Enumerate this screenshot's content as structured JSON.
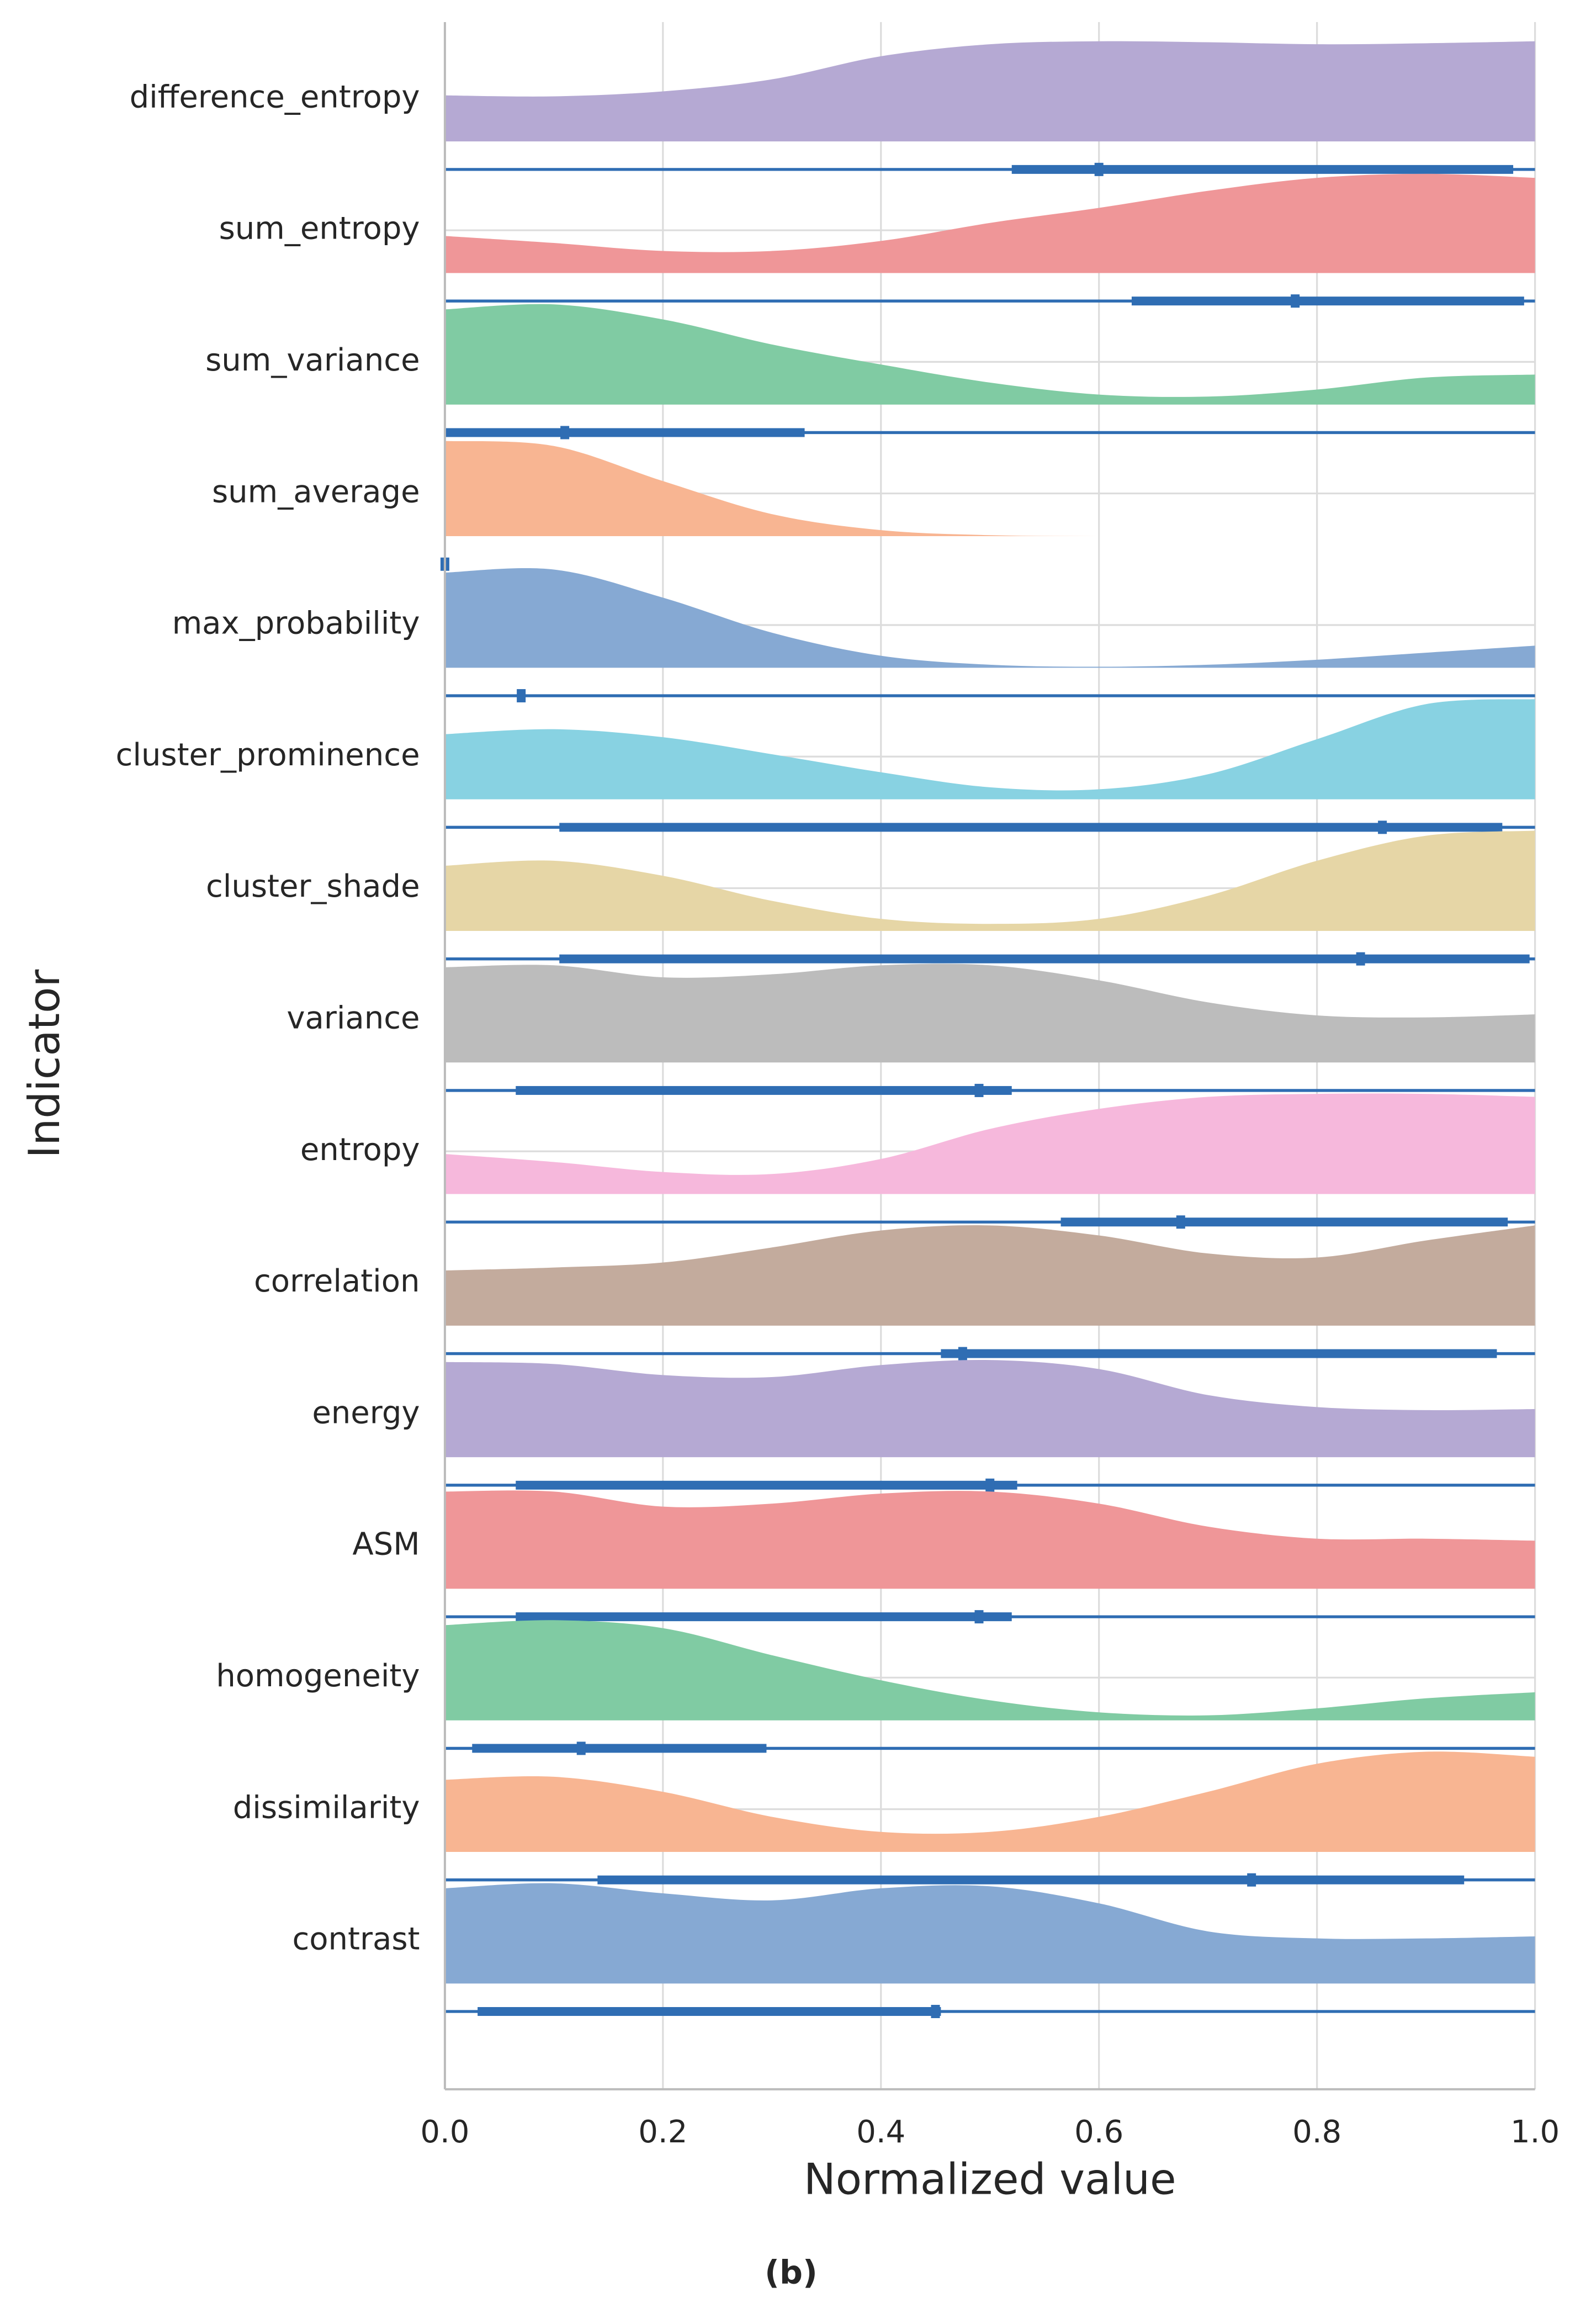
{
  "chart_data": {
    "type": "raincloud",
    "xlabel": "Normalized value",
    "ylabel": "Indicator",
    "caption": "(b)",
    "xlim": [
      0,
      1
    ],
    "xticks": [
      {
        "value": 0,
        "label": "0.0"
      },
      0.2,
      0.4,
      0.6,
      0.8,
      {
        "value": 1,
        "label": "1.0"
      }
    ],
    "grid": true,
    "categories": [
      "difference_entropy",
      "sum_entropy",
      "sum_variance",
      "sum_average",
      "max_probability",
      "cluster_prominence",
      "cluster_shade",
      "variance",
      "entropy",
      "correlation",
      "energy",
      "ASM",
      "homogeneity",
      "dissimilarity",
      "contrast"
    ],
    "density_x": [
      0,
      0.1,
      0.2,
      0.3,
      0.4,
      0.5,
      0.6,
      0.7,
      0.8,
      0.9,
      1
    ],
    "box_color": "#2f6db3",
    "series": [
      {
        "color": "#b5a9d3",
        "density": [
          0.46,
          0.45,
          0.5,
          0.62,
          0.85,
          0.97,
          1.0,
          0.99,
          0.97,
          0.98,
          1.0
        ],
        "min": 0,
        "q1": 0.52,
        "median": 0.6,
        "q3": 0.98,
        "max": 1
      },
      {
        "color": "#ef9698",
        "density": [
          0.37,
          0.3,
          0.22,
          0.22,
          0.32,
          0.5,
          0.65,
          0.82,
          0.95,
          0.99,
          0.95
        ],
        "min": 0,
        "q1": 0.63,
        "median": 0.78,
        "q3": 0.99,
        "max": 1
      },
      {
        "color": "#80cba3",
        "density": [
          0.95,
          1.0,
          0.85,
          0.6,
          0.4,
          0.22,
          0.1,
          0.08,
          0.15,
          0.27,
          0.3
        ],
        "min": 0,
        "q1": 0,
        "median": 0.11,
        "q3": 0.33,
        "max": 1
      },
      {
        "color": "#f8b592",
        "density": [
          0.95,
          0.9,
          0.55,
          0.22,
          0.06,
          0.01,
          0,
          0,
          0,
          0,
          0
        ],
        "min": 0,
        "q1": 0,
        "median": 0,
        "q3": 0.003,
        "max": 0.003
      },
      {
        "color": "#86a9d3",
        "density": [
          0.95,
          0.98,
          0.7,
          0.35,
          0.12,
          0.03,
          0.01,
          0.03,
          0.08,
          0.15,
          0.22
        ],
        "min": 0,
        "q1": 0.068,
        "median": 0.07,
        "q3": 0.074,
        "max": 1
      },
      {
        "color": "#88d2e2",
        "density": [
          0.65,
          0.7,
          0.62,
          0.45,
          0.27,
          0.12,
          0.1,
          0.25,
          0.6,
          0.95,
          1.0
        ],
        "min": 0,
        "q1": 0.105,
        "median": 0.86,
        "q3": 0.97,
        "max": 1
      },
      {
        "color": "#e6d6a6",
        "density": [
          0.65,
          0.7,
          0.55,
          0.3,
          0.12,
          0.07,
          0.12,
          0.35,
          0.7,
          0.95,
          1.0
        ],
        "min": 0,
        "q1": 0.105,
        "median": 0.84,
        "q3": 0.995,
        "max": 1
      },
      {
        "color": "#bcbcbc",
        "density": [
          0.95,
          0.97,
          0.85,
          0.88,
          0.97,
          0.97,
          0.82,
          0.6,
          0.47,
          0.45,
          0.48
        ],
        "min": 0,
        "q1": 0.065,
        "median": 0.49,
        "q3": 0.52,
        "max": 1
      },
      {
        "color": "#f6b8dc",
        "density": [
          0.4,
          0.32,
          0.22,
          0.2,
          0.35,
          0.65,
          0.85,
          0.97,
          1.0,
          1.0,
          0.97
        ],
        "min": 0,
        "q1": 0.565,
        "median": 0.675,
        "q3": 0.975,
        "max": 1
      },
      {
        "color": "#c3ab9d",
        "density": [
          0.55,
          0.58,
          0.63,
          0.78,
          0.95,
          1.0,
          0.9,
          0.72,
          0.68,
          0.85,
          1.0
        ],
        "min": 0,
        "q1": 0.455,
        "median": 0.475,
        "q3": 0.965,
        "max": 1
      },
      {
        "color": "#b5a9d3",
        "density": [
          0.95,
          0.93,
          0.82,
          0.8,
          0.92,
          0.97,
          0.88,
          0.62,
          0.5,
          0.47,
          0.48
        ],
        "min": 0,
        "q1": 0.065,
        "median": 0.5,
        "q3": 0.525,
        "max": 1
      },
      {
        "color": "#ef9698",
        "density": [
          0.97,
          0.97,
          0.82,
          0.85,
          0.95,
          0.97,
          0.85,
          0.62,
          0.5,
          0.5,
          0.48
        ],
        "min": 0,
        "q1": 0.065,
        "median": 0.49,
        "q3": 0.52,
        "max": 1
      },
      {
        "color": "#80cba3",
        "density": [
          0.95,
          1.0,
          0.92,
          0.65,
          0.4,
          0.2,
          0.08,
          0.05,
          0.12,
          0.22,
          0.28
        ],
        "min": 0,
        "q1": 0.025,
        "median": 0.125,
        "q3": 0.295,
        "max": 1
      },
      {
        "color": "#f8b592",
        "density": [
          0.72,
          0.75,
          0.6,
          0.35,
          0.2,
          0.2,
          0.35,
          0.6,
          0.88,
          1.0,
          0.95
        ],
        "min": 0,
        "q1": 0.14,
        "median": 0.74,
        "q3": 0.935,
        "max": 1
      },
      {
        "color": "#86a9d3",
        "density": [
          0.95,
          1.0,
          0.9,
          0.83,
          0.95,
          0.97,
          0.8,
          0.52,
          0.45,
          0.45,
          0.47
        ],
        "min": 0,
        "q1": 0.03,
        "median": 0.45,
        "q3": 0.455,
        "max": 1
      }
    ]
  }
}
